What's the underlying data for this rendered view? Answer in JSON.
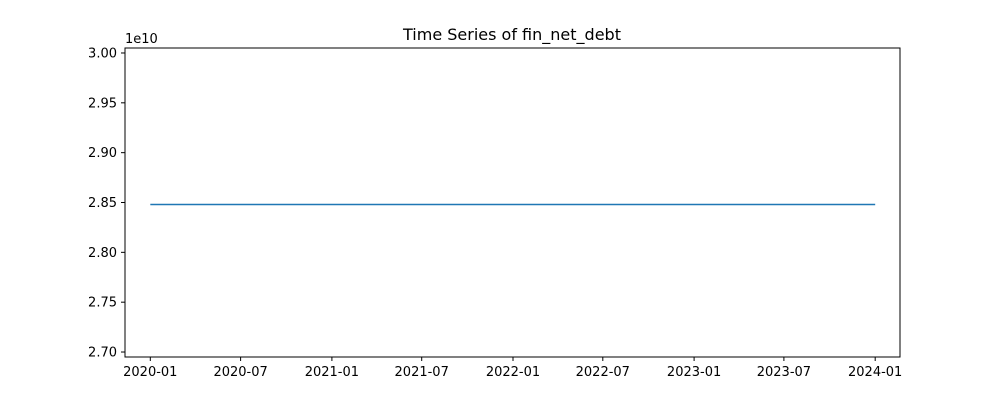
{
  "chart_data": {
    "type": "line",
    "title": "Time Series of fin_net_debt",
    "xlabel": "",
    "ylabel": "",
    "y_offset_label": "1e10",
    "y_scale": 10000000000,
    "ylim": [
      2.695,
      3.005
    ],
    "xlim": [
      "2019-11-11",
      "2024-02-20"
    ],
    "x_ticks": [
      "2020-01",
      "2020-07",
      "2021-01",
      "2021-07",
      "2022-01",
      "2022-07",
      "2023-01",
      "2023-07",
      "2024-01"
    ],
    "y_ticks": [
      "2.70",
      "2.75",
      "2.80",
      "2.85",
      "2.90",
      "2.95",
      "3.00"
    ],
    "grid": false,
    "colors": {
      "line": "#1f77b4"
    },
    "series": [
      {
        "x": [
          "2020-01-01",
          "2024-01-01"
        ],
        "values": [
          2.848,
          2.848
        ]
      }
    ]
  }
}
